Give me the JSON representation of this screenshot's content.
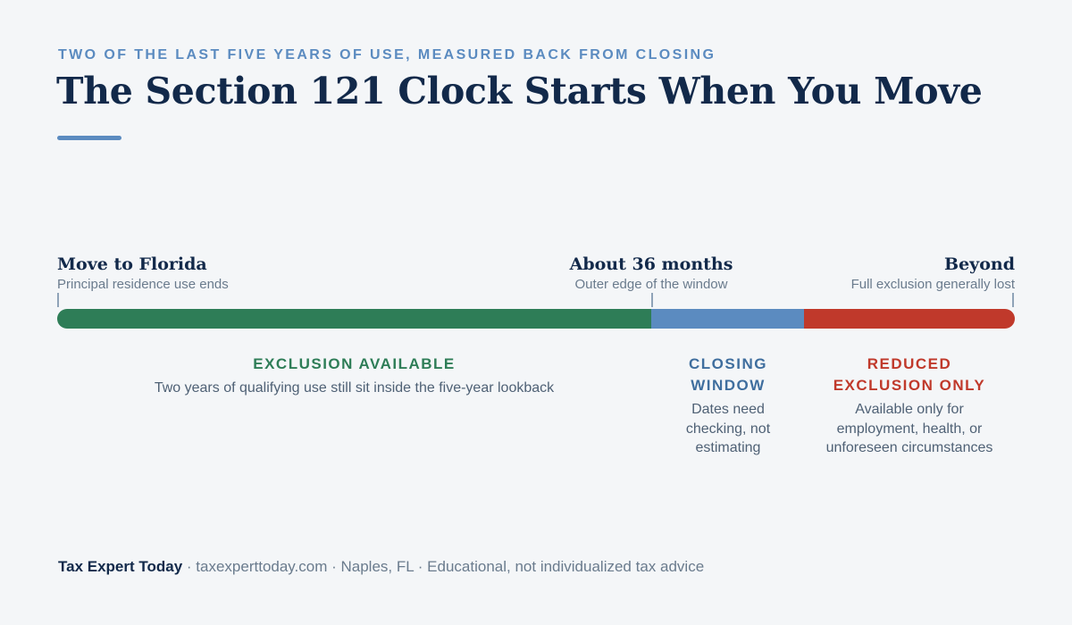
{
  "header": {
    "eyebrow": "TWO OF THE LAST FIVE YEARS OF USE, MEASURED BACK FROM CLOSING",
    "title": "The Section 121 Clock Starts When You Move",
    "accent_color": "#5b8bc0"
  },
  "markers": [
    {
      "title": "Move to Florida",
      "subtitle": "Principal residence use ends"
    },
    {
      "title": "About 36 months",
      "subtitle": "Outer edge of the window"
    },
    {
      "title": "Beyond",
      "subtitle": "Full exclusion generally lost"
    }
  ],
  "timeline": {
    "segments": [
      {
        "zone": "available",
        "fraction": 0.62,
        "color": "#2e7d57"
      },
      {
        "zone": "closing",
        "fraction": 0.16,
        "color": "#5b8bc0"
      },
      {
        "zone": "reduced",
        "fraction": 0.22,
        "color": "#c0392b"
      }
    ]
  },
  "zones": {
    "available": {
      "label": "EXCLUSION AVAILABLE",
      "description": "Two years of qualifying use still sit inside the five-year lookback",
      "color": "#2e7d57"
    },
    "closing": {
      "label_line1": "CLOSING",
      "label_line2": "WINDOW",
      "description_lines": [
        "Dates need",
        "checking, not",
        "estimating"
      ],
      "color": "#3f6e9e"
    },
    "reduced": {
      "label_line1": "REDUCED",
      "label_line2": "EXCLUSION ONLY",
      "description_lines": [
        "Available only for",
        "employment, health, or",
        "unforeseen circumstances"
      ],
      "color": "#c0392b"
    }
  },
  "footer": {
    "brand": "Tax Expert Today",
    "details": " · taxexperttoday.com · Naples, FL · Educational, not individualized tax advice"
  }
}
